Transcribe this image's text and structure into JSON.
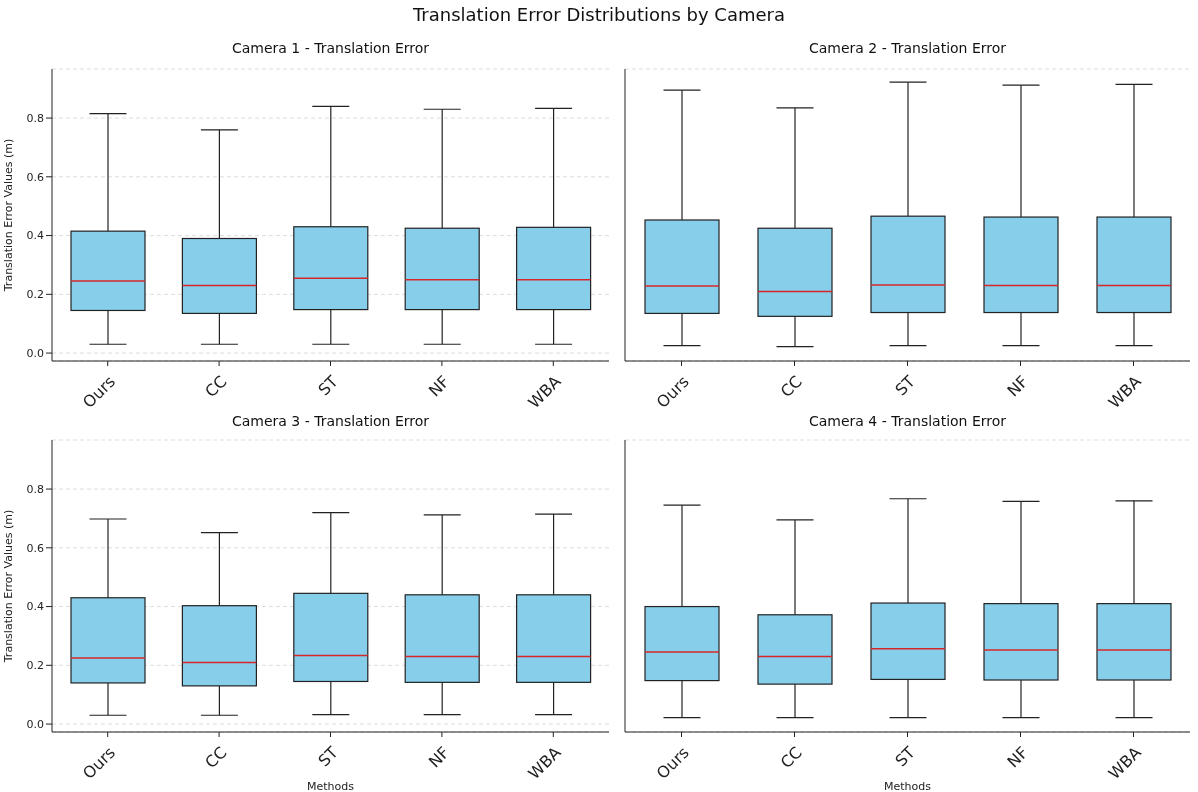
{
  "chart_data": [
    {
      "type": "box",
      "title": "Camera 1 - Translation Error",
      "annotations": [
        "Translation Error Distributions by Camera"
      ],
      "ylabel": "Translation Error Values (m)",
      "categories": [
        "Ours",
        "CC",
        "ST",
        "NF",
        "WBA"
      ],
      "color": "#87ceeb",
      "boxes": [
        {
          "low": 0.03,
          "q1": 0.145,
          "median": 0.245,
          "q3": 0.415,
          "high": 0.815
        },
        {
          "low": 0.03,
          "q1": 0.135,
          "median": 0.23,
          "q3": 0.39,
          "high": 0.76
        },
        {
          "low": 0.03,
          "q1": 0.148,
          "median": 0.255,
          "q3": 0.43,
          "high": 0.84
        },
        {
          "low": 0.03,
          "q1": 0.148,
          "median": 0.25,
          "q3": 0.425,
          "high": 0.83
        },
        {
          "low": 0.03,
          "q1": 0.148,
          "median": 0.25,
          "q3": 0.428,
          "high": 0.833
        }
      ],
      "ylim": [
        -0.027,
        0.967
      ],
      "yticks": [
        {
          "value": 0,
          "label": "0.0"
        },
        0.2,
        0.4,
        0.6,
        0.8
      ],
      "grid": "y"
    },
    {
      "type": "box",
      "title": "Camera 2 - Translation Error",
      "categories": [
        "Ours",
        "CC",
        "ST",
        "NF",
        "WBA"
      ],
      "color": "#87ceeb",
      "boxes": [
        {
          "low": 0.025,
          "q1": 0.135,
          "median": 0.228,
          "q3": 0.453,
          "high": 0.895
        },
        {
          "low": 0.022,
          "q1": 0.125,
          "median": 0.21,
          "q3": 0.425,
          "high": 0.835
        },
        {
          "low": 0.025,
          "q1": 0.138,
          "median": 0.232,
          "q3": 0.466,
          "high": 0.922
        },
        {
          "low": 0.025,
          "q1": 0.138,
          "median": 0.23,
          "q3": 0.463,
          "high": 0.912
        },
        {
          "low": 0.025,
          "q1": 0.138,
          "median": 0.23,
          "q3": 0.463,
          "high": 0.915
        }
      ],
      "ylim": [
        -0.027,
        0.967
      ],
      "yticks": [
        0.0,
        0.2,
        0.4,
        0.6,
        0.8
      ],
      "grid": "y",
      "tick_labels": "x"
    },
    {
      "type": "box",
      "title": "Camera 3 - Translation Error",
      "xlabel": "Methods",
      "ylabel": "Translation Error Values (m)",
      "categories": [
        "Ours",
        "CC",
        "ST",
        "NF",
        "WBA"
      ],
      "color": "#87ceeb",
      "boxes": [
        {
          "low": 0.03,
          "q1": 0.14,
          "median": 0.225,
          "q3": 0.43,
          "high": 0.698
        },
        {
          "low": 0.03,
          "q1": 0.13,
          "median": 0.21,
          "q3": 0.403,
          "high": 0.652
        },
        {
          "low": 0.032,
          "q1": 0.145,
          "median": 0.233,
          "q3": 0.445,
          "high": 0.72
        },
        {
          "low": 0.032,
          "q1": 0.142,
          "median": 0.23,
          "q3": 0.44,
          "high": 0.712
        },
        {
          "low": 0.032,
          "q1": 0.142,
          "median": 0.23,
          "q3": 0.44,
          "high": 0.715
        }
      ],
      "ylim": [
        -0.027,
        0.967
      ],
      "yticks": [
        {
          "value": 0,
          "label": "0.0"
        },
        0.2,
        0.4,
        0.6,
        0.8
      ],
      "grid": "y"
    },
    {
      "type": "box",
      "title": "Camera 4 - Translation Error",
      "xlabel": "Methods",
      "categories": [
        "Ours",
        "CC",
        "ST",
        "NF",
        "WBA"
      ],
      "color": "#87ceeb",
      "boxes": [
        {
          "low": 0.022,
          "q1": 0.148,
          "median": 0.245,
          "q3": 0.4,
          "high": 0.745
        },
        {
          "low": 0.022,
          "q1": 0.136,
          "median": 0.23,
          "q3": 0.372,
          "high": 0.695
        },
        {
          "low": 0.022,
          "q1": 0.152,
          "median": 0.256,
          "q3": 0.412,
          "high": 0.767
        },
        {
          "low": 0.022,
          "q1": 0.15,
          "median": 0.252,
          "q3": 0.41,
          "high": 0.758
        },
        {
          "low": 0.022,
          "q1": 0.15,
          "median": 0.252,
          "q3": 0.41,
          "high": 0.76
        }
      ],
      "ylim": [
        -0.027,
        0.967
      ],
      "yticks": [
        0.0,
        0.2,
        0.4,
        0.6,
        0.8
      ],
      "grid": "y",
      "tick_labels": "x"
    }
  ]
}
